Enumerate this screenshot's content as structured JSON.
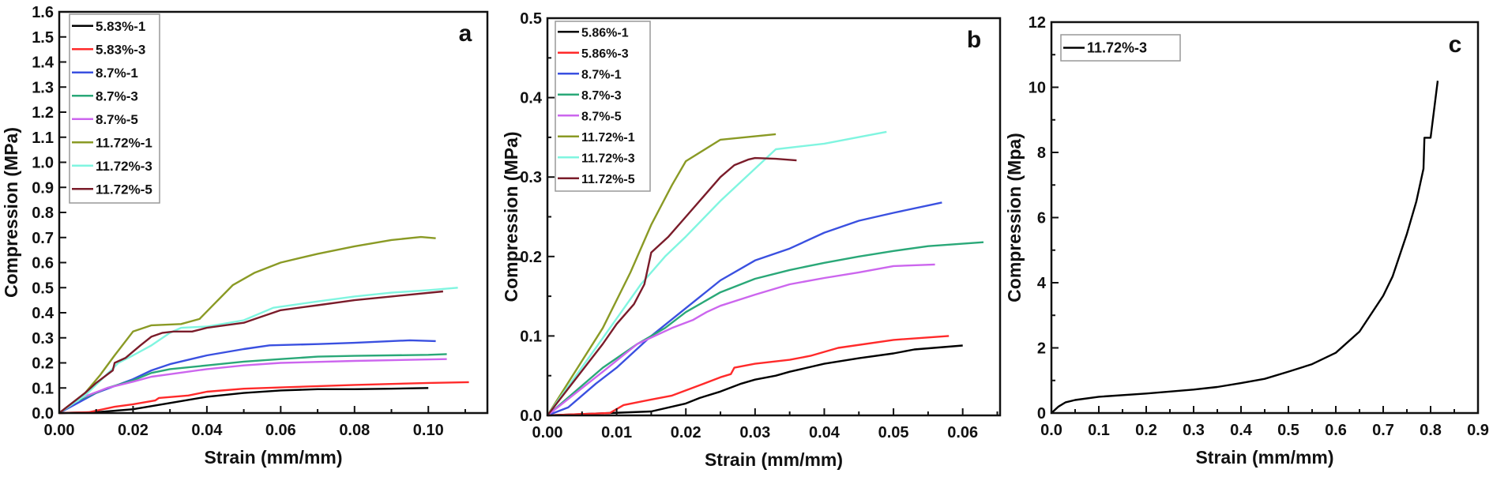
{
  "chart_data": [
    {
      "type": "line",
      "panel_label": "a",
      "xlabel": "Strain (mm/mm)",
      "ylabel": "Compression (MPa)",
      "xlim": [
        0,
        0.116
      ],
      "ylim": [
        0,
        1.6
      ],
      "xticks": [
        "0.00",
        "0.02",
        "0.04",
        "0.06",
        "0.08",
        "0.10"
      ],
      "xtick_values": [
        0,
        0.02,
        0.04,
        0.06,
        0.08,
        0.1
      ],
      "yticks": [
        "0.0",
        "0.1",
        "0.2",
        "0.3",
        "0.4",
        "0.5",
        "0.6",
        "0.7",
        "0.8",
        "0.9",
        "1.0",
        "1.1",
        "1.2",
        "1.3",
        "1.4",
        "1.5",
        "1.6"
      ],
      "ytick_values": [
        0,
        0.1,
        0.2,
        0.3,
        0.4,
        0.5,
        0.6,
        0.7,
        0.8,
        0.9,
        1.0,
        1.1,
        1.2,
        1.3,
        1.4,
        1.5,
        1.6
      ],
      "grid": false,
      "legend": "top-left",
      "series": [
        {
          "name": "5.83%-1",
          "color": "#000000",
          "x": [
            0,
            0.01,
            0.02,
            0.03,
            0.04,
            0.05,
            0.06,
            0.07,
            0.08,
            0.09,
            0.1
          ],
          "y": [
            0,
            0.003,
            0.015,
            0.04,
            0.065,
            0.08,
            0.09,
            0.095,
            0.095,
            0.097,
            0.1
          ]
        },
        {
          "name": "5.83%-3",
          "color": "#ff2a2a",
          "x": [
            0,
            0.008,
            0.015,
            0.02,
            0.026,
            0.027,
            0.035,
            0.04,
            0.05,
            0.06,
            0.08,
            0.1,
            0.111
          ],
          "y": [
            0,
            0.003,
            0.025,
            0.035,
            0.05,
            0.06,
            0.07,
            0.085,
            0.097,
            0.102,
            0.112,
            0.12,
            0.123
          ]
        },
        {
          "name": "8.7%-1",
          "color": "#3a50e0",
          "x": [
            0,
            0.005,
            0.01,
            0.02,
            0.025,
            0.03,
            0.04,
            0.05,
            0.057,
            0.07,
            0.08,
            0.095,
            0.102
          ],
          "y": [
            0,
            0.04,
            0.08,
            0.135,
            0.17,
            0.195,
            0.23,
            0.255,
            0.27,
            0.275,
            0.28,
            0.29,
            0.287
          ]
        },
        {
          "name": "8.7%-3",
          "color": "#2aa878",
          "x": [
            0,
            0.005,
            0.013,
            0.02,
            0.025,
            0.03,
            0.04,
            0.05,
            0.06,
            0.07,
            0.08,
            0.1,
            0.105
          ],
          "y": [
            0,
            0.05,
            0.1,
            0.13,
            0.16,
            0.175,
            0.19,
            0.205,
            0.215,
            0.225,
            0.228,
            0.232,
            0.235
          ]
        },
        {
          "name": "8.7%-5",
          "color": "#cc66ee",
          "x": [
            0,
            0.005,
            0.013,
            0.02,
            0.025,
            0.03,
            0.04,
            0.05,
            0.06,
            0.08,
            0.105
          ],
          "y": [
            0,
            0.055,
            0.1,
            0.125,
            0.145,
            0.155,
            0.175,
            0.19,
            0.2,
            0.208,
            0.215
          ]
        },
        {
          "name": "11.72%-1",
          "color": "#8a9a25",
          "x": [
            0,
            0.007,
            0.011,
            0.015,
            0.02,
            0.025,
            0.033,
            0.038,
            0.043,
            0.047,
            0.053,
            0.06,
            0.07,
            0.08,
            0.09,
            0.098,
            0.102
          ],
          "y": [
            0,
            0.08,
            0.15,
            0.23,
            0.325,
            0.35,
            0.355,
            0.375,
            0.45,
            0.51,
            0.56,
            0.6,
            0.635,
            0.665,
            0.69,
            0.702,
            0.697
          ]
        },
        {
          "name": "11.72%-3",
          "color": "#80f5e0",
          "x": [
            0,
            0.007,
            0.014,
            0.016,
            0.02,
            0.025,
            0.03,
            0.033,
            0.04,
            0.05,
            0.058,
            0.07,
            0.08,
            0.09,
            0.1,
            0.108
          ],
          "y": [
            0,
            0.07,
            0.17,
            0.2,
            0.23,
            0.27,
            0.32,
            0.34,
            0.345,
            0.37,
            0.42,
            0.445,
            0.465,
            0.48,
            0.49,
            0.5
          ]
        },
        {
          "name": "11.72%-5",
          "color": "#7a1c2a",
          "x": [
            0,
            0.007,
            0.01,
            0.0145,
            0.015,
            0.018,
            0.022,
            0.025,
            0.028,
            0.031,
            0.036,
            0.04,
            0.05,
            0.053,
            0.06,
            0.07,
            0.08,
            0.09,
            0.104
          ],
          "y": [
            0,
            0.08,
            0.12,
            0.17,
            0.2,
            0.22,
            0.27,
            0.305,
            0.32,
            0.325,
            0.325,
            0.34,
            0.36,
            0.375,
            0.41,
            0.43,
            0.45,
            0.465,
            0.485
          ]
        }
      ]
    },
    {
      "type": "line",
      "panel_label": "b",
      "xlabel": "Strain (mm/mm)",
      "ylabel": "Compression (MPa)",
      "xlim": [
        0,
        0.0654
      ],
      "ylim": [
        0,
        0.5
      ],
      "xticks": [
        "0.00",
        "0.01",
        "0.02",
        "0.03",
        "0.04",
        "0.05",
        "0.06"
      ],
      "xtick_values": [
        0,
        0.01,
        0.02,
        0.03,
        0.04,
        0.05,
        0.06
      ],
      "yticks": [
        "0.0",
        "0.1",
        "0.2",
        "0.3",
        "0.4",
        "0.5"
      ],
      "ytick_values": [
        0,
        0.1,
        0.2,
        0.3,
        0.4,
        0.5
      ],
      "grid": false,
      "legend": "top-left",
      "series": [
        {
          "name": "5.86%-1",
          "color": "#000000",
          "x": [
            0,
            0.015,
            0.02,
            0.022,
            0.025,
            0.028,
            0.03,
            0.033,
            0.035,
            0.04,
            0.045,
            0.05,
            0.053,
            0.06
          ],
          "y": [
            0,
            0.005,
            0.015,
            0.022,
            0.03,
            0.04,
            0.045,
            0.05,
            0.055,
            0.065,
            0.072,
            0.078,
            0.083,
            0.088
          ]
        },
        {
          "name": "5.86%-3",
          "color": "#ff2a2a",
          "x": [
            0,
            0.009,
            0.011,
            0.015,
            0.018,
            0.022,
            0.025,
            0.0265,
            0.027,
            0.03,
            0.035,
            0.038,
            0.042,
            0.05,
            0.058
          ],
          "y": [
            0,
            0.003,
            0.013,
            0.02,
            0.025,
            0.038,
            0.048,
            0.052,
            0.06,
            0.065,
            0.07,
            0.075,
            0.085,
            0.095,
            0.1
          ]
        },
        {
          "name": "8.7%-1",
          "color": "#3a50e0",
          "x": [
            0,
            0.003,
            0.007,
            0.01,
            0.015,
            0.02,
            0.025,
            0.03,
            0.035,
            0.04,
            0.045,
            0.05,
            0.057
          ],
          "y": [
            0,
            0.01,
            0.04,
            0.06,
            0.1,
            0.135,
            0.17,
            0.195,
            0.21,
            0.23,
            0.245,
            0.255,
            0.268
          ]
        },
        {
          "name": "8.7%-3",
          "color": "#2aa878",
          "x": [
            0,
            0.008,
            0.013,
            0.017,
            0.02,
            0.025,
            0.03,
            0.035,
            0.04,
            0.045,
            0.05,
            0.055,
            0.063
          ],
          "y": [
            0,
            0.06,
            0.09,
            0.11,
            0.13,
            0.155,
            0.172,
            0.183,
            0.192,
            0.2,
            0.207,
            0.213,
            0.218
          ]
        },
        {
          "name": "8.7%-5",
          "color": "#cc66ee",
          "x": [
            0,
            0.008,
            0.013,
            0.018,
            0.021,
            0.023,
            0.025,
            0.03,
            0.035,
            0.04,
            0.045,
            0.05,
            0.056
          ],
          "y": [
            0,
            0.055,
            0.09,
            0.11,
            0.12,
            0.13,
            0.138,
            0.152,
            0.165,
            0.173,
            0.18,
            0.188,
            0.19
          ]
        },
        {
          "name": "11.72%-1",
          "color": "#8a9a25",
          "x": [
            0,
            0.008,
            0.012,
            0.015,
            0.018,
            0.02,
            0.025,
            0.033
          ],
          "y": [
            0,
            0.11,
            0.18,
            0.24,
            0.29,
            0.32,
            0.347,
            0.354
          ]
        },
        {
          "name": "11.72%-3",
          "color": "#80f5e0",
          "x": [
            0,
            0.007,
            0.0135,
            0.017,
            0.02,
            0.025,
            0.033,
            0.04,
            0.049
          ],
          "y": [
            0,
            0.085,
            0.165,
            0.2,
            0.225,
            0.27,
            0.335,
            0.342,
            0.357
          ]
        },
        {
          "name": "11.72%-5",
          "color": "#7a1c2a",
          "x": [
            0,
            0.008,
            0.01,
            0.0125,
            0.014,
            0.015,
            0.0175,
            0.02,
            0.023,
            0.025,
            0.027,
            0.029,
            0.03,
            0.033,
            0.036
          ],
          "y": [
            0,
            0.09,
            0.115,
            0.14,
            0.165,
            0.205,
            0.225,
            0.25,
            0.28,
            0.3,
            0.315,
            0.322,
            0.324,
            0.323,
            0.321
          ]
        }
      ]
    },
    {
      "type": "line",
      "panel_label": "c",
      "xlabel": "Strain (mm/mm)",
      "ylabel": "Compression (Mpa)",
      "xlim": [
        0,
        0.9
      ],
      "ylim": [
        0,
        12
      ],
      "xticks": [
        "0.0",
        "0.1",
        "0.2",
        "0.3",
        "0.4",
        "0.5",
        "0.6",
        "0.7",
        "0.8",
        "0.9"
      ],
      "xtick_values": [
        0,
        0.1,
        0.2,
        0.3,
        0.4,
        0.5,
        0.6,
        0.7,
        0.8,
        0.9
      ],
      "yticks": [
        "0",
        "2",
        "4",
        "6",
        "8",
        "10",
        "12"
      ],
      "ytick_values": [
        0,
        2,
        4,
        6,
        8,
        10,
        12
      ],
      "grid": false,
      "legend": "top-left",
      "series": [
        {
          "name": "11.72%-3",
          "color": "#000000",
          "x": [
            0,
            0.015,
            0.03,
            0.05,
            0.1,
            0.2,
            0.3,
            0.35,
            0.4,
            0.45,
            0.5,
            0.55,
            0.6,
            0.65,
            0.7,
            0.72,
            0.75,
            0.77,
            0.785,
            0.787,
            0.8,
            0.815
          ],
          "y": [
            0,
            0.2,
            0.33,
            0.4,
            0.5,
            0.6,
            0.72,
            0.8,
            0.92,
            1.05,
            1.27,
            1.5,
            1.85,
            2.5,
            3.6,
            4.2,
            5.5,
            6.5,
            7.5,
            8.45,
            8.45,
            10.2
          ]
        }
      ]
    }
  ]
}
